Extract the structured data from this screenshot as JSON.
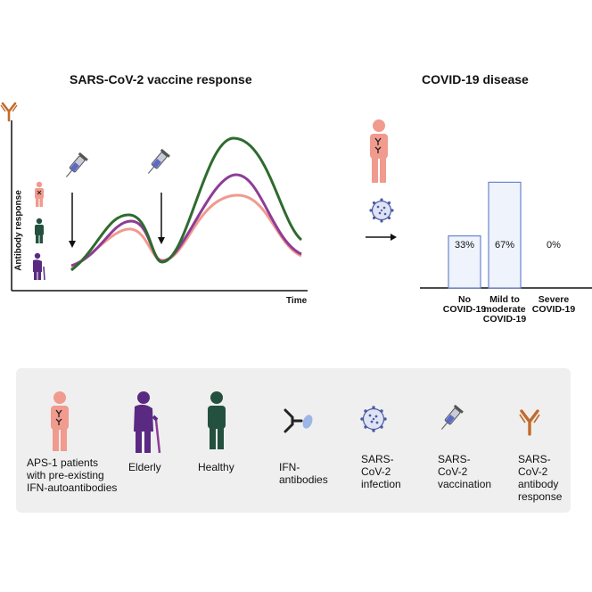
{
  "left_panel": {
    "title": "SARS-CoV-2 vaccine response",
    "ylabel": "Antibody response",
    "xlabel": "Time"
  },
  "right_panel": {
    "title": "COVID-19 disease"
  },
  "chart_data": {
    "type": "bar",
    "title": "COVID-19 disease",
    "categories": [
      "No COVID-19",
      "Mild to moderate COVID-19",
      "Severe COVID-19"
    ],
    "category_lines": [
      [
        "No",
        "COVID-19"
      ],
      [
        "Mild to",
        "moderate",
        "COVID-19"
      ],
      [
        "Severe",
        "COVID-19"
      ]
    ],
    "values": [
      33,
      67,
      0
    ],
    "labels": [
      "33%",
      "67%",
      "0%"
    ],
    "ylim": [
      0,
      100
    ]
  },
  "legend": {
    "aps1": [
      "APS-1 patients",
      "with pre-existing",
      "IFN-autoantibodies"
    ],
    "elderly": [
      "Elderly"
    ],
    "healthy": [
      "Healthy"
    ],
    "ifn": [
      "IFN-",
      "antibodies"
    ],
    "infection": [
      "SARS-",
      "CoV-2",
      "infection"
    ],
    "vaccination": [
      "SARS-",
      "CoV-2",
      "vaccination"
    ],
    "antibody": [
      "SARS-",
      "CoV-2",
      "antibody",
      "response"
    ]
  },
  "colors": {
    "healthy": "#2e6b2e",
    "elderly": "#8e3c97",
    "aps1": "#f19a8e",
    "antibody": "#c26a2d",
    "bar_fill": "#eef3fc",
    "bar_stroke": "#6a84cf",
    "virus": "#4a5aa3"
  }
}
